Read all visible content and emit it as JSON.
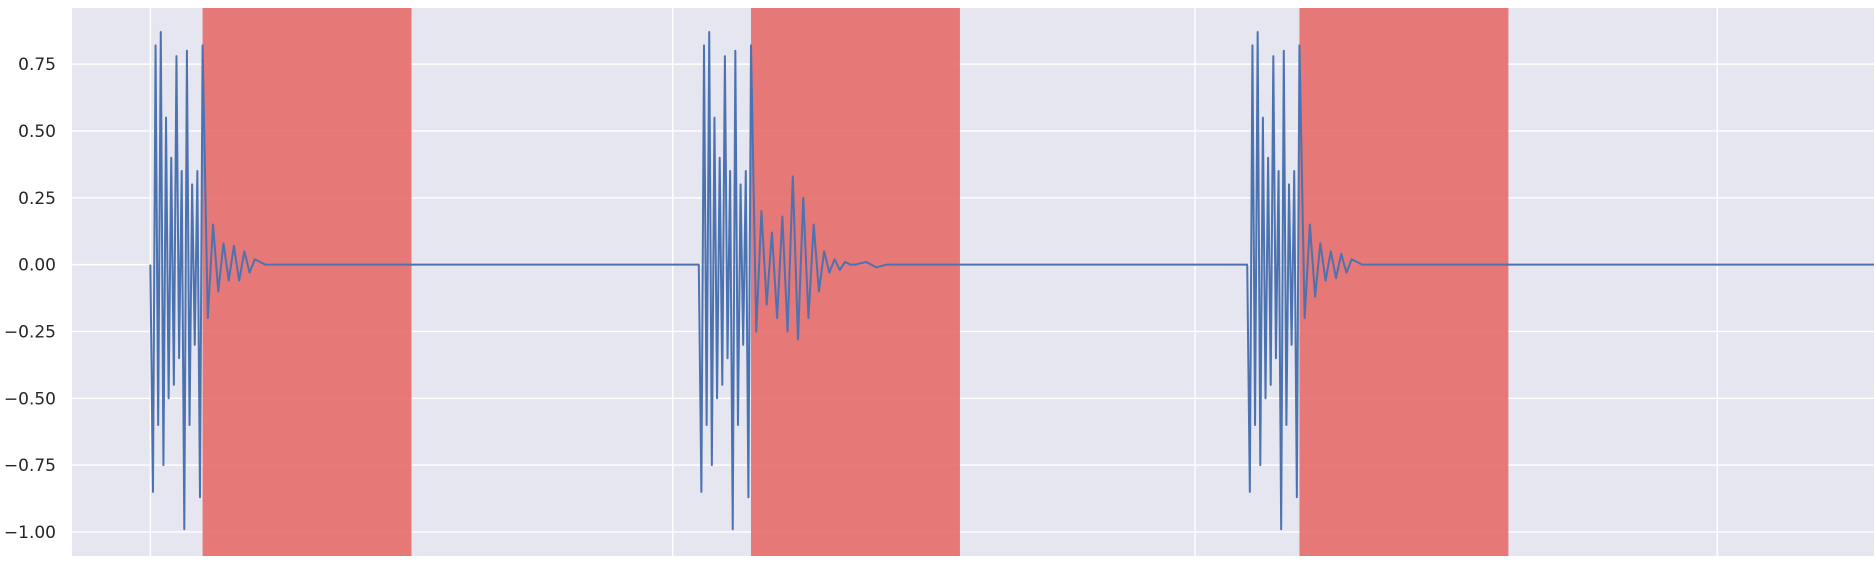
{
  "chart_data": {
    "type": "line",
    "title": "",
    "xlabel": "",
    "ylabel": "",
    "xlim": [
      -0.15,
      3.3
    ],
    "ylim": [
      -1.09,
      0.96
    ],
    "xticks": [
      0,
      1,
      2,
      3
    ],
    "yticks": [
      {
        "value": 0.75,
        "label": "0.75"
      },
      {
        "value": 0.5,
        "label": "0.50"
      },
      {
        "value": 0.25,
        "label": "0.25"
      },
      {
        "value": 0.0,
        "label": "0.00"
      },
      {
        "value": -0.25,
        "label": "−0.25"
      },
      {
        "value": -0.5,
        "label": "−0.50"
      },
      {
        "value": -0.75,
        "label": "−0.75"
      },
      {
        "value": -1.0,
        "label": "−1.00"
      }
    ],
    "grid": true,
    "colors": {
      "background": "#e5e6f0",
      "grid": "#ffffff",
      "series": "#4c72b0",
      "highlight": "#e66462"
    },
    "highlight_spans": [
      {
        "x0": 0.1,
        "x1": 0.5
      },
      {
        "x0": 1.15,
        "x1": 1.55
      },
      {
        "x0": 2.2,
        "x1": 2.6
      }
    ],
    "series": [
      {
        "x": [
          0.0,
          0.005,
          0.01,
          0.015,
          0.02,
          0.025,
          0.03,
          0.035,
          0.04,
          0.045,
          0.05,
          0.055,
          0.06,
          0.065,
          0.07,
          0.075,
          0.08,
          0.085,
          0.09,
          0.095,
          0.1,
          0.11,
          0.12,
          0.13,
          0.14,
          0.15,
          0.16,
          0.17,
          0.18,
          0.19,
          0.2,
          0.22,
          0.5,
          1.0,
          1.05,
          1.055,
          1.06,
          1.065,
          1.07,
          1.075,
          1.08,
          1.085,
          1.09,
          1.095,
          1.1,
          1.105,
          1.11,
          1.115,
          1.12,
          1.125,
          1.13,
          1.135,
          1.14,
          1.145,
          1.15,
          1.16,
          1.17,
          1.18,
          1.19,
          1.2,
          1.21,
          1.22,
          1.23,
          1.24,
          1.25,
          1.26,
          1.27,
          1.28,
          1.29,
          1.3,
          1.31,
          1.32,
          1.33,
          1.34,
          1.35,
          1.37,
          1.39,
          1.41,
          1.5,
          2.0,
          2.1,
          2.105,
          2.11,
          2.115,
          2.12,
          2.125,
          2.13,
          2.135,
          2.14,
          2.145,
          2.15,
          2.155,
          2.16,
          2.165,
          2.17,
          2.175,
          2.18,
          2.185,
          2.19,
          2.195,
          2.2,
          2.21,
          2.22,
          2.23,
          2.24,
          2.25,
          2.26,
          2.27,
          2.28,
          2.29,
          2.3,
          2.32,
          2.6,
          3.3
        ],
        "y": [
          0.0,
          -0.85,
          0.82,
          -0.6,
          0.87,
          -0.75,
          0.55,
          -0.5,
          0.4,
          -0.45,
          0.78,
          -0.35,
          0.35,
          -0.99,
          0.8,
          -0.6,
          0.3,
          -0.3,
          0.35,
          -0.87,
          0.82,
          -0.2,
          0.15,
          -0.1,
          0.08,
          -0.06,
          0.07,
          -0.06,
          0.05,
          -0.03,
          0.02,
          0.0,
          0.0,
          0.0,
          0.0,
          -0.85,
          0.82,
          -0.6,
          0.87,
          -0.75,
          0.55,
          -0.5,
          0.4,
          -0.45,
          0.78,
          -0.35,
          0.35,
          -0.99,
          0.8,
          -0.6,
          0.3,
          -0.3,
          0.35,
          -0.87,
          0.82,
          -0.25,
          0.2,
          -0.15,
          0.12,
          -0.2,
          0.18,
          -0.25,
          0.33,
          -0.28,
          0.25,
          -0.2,
          0.15,
          -0.1,
          0.05,
          -0.03,
          0.02,
          -0.02,
          0.01,
          0.0,
          0.0,
          0.01,
          -0.01,
          0.0,
          0.0,
          0.0,
          0.0,
          -0.85,
          0.82,
          -0.6,
          0.87,
          -0.75,
          0.55,
          -0.5,
          0.4,
          -0.45,
          0.78,
          -0.35,
          0.35,
          -0.99,
          0.8,
          -0.6,
          0.3,
          -0.3,
          0.35,
          -0.87,
          0.82,
          -0.2,
          0.15,
          -0.12,
          0.08,
          -0.06,
          0.05,
          -0.05,
          0.04,
          -0.03,
          0.02,
          0.0,
          0.0,
          0.0
        ]
      }
    ]
  }
}
